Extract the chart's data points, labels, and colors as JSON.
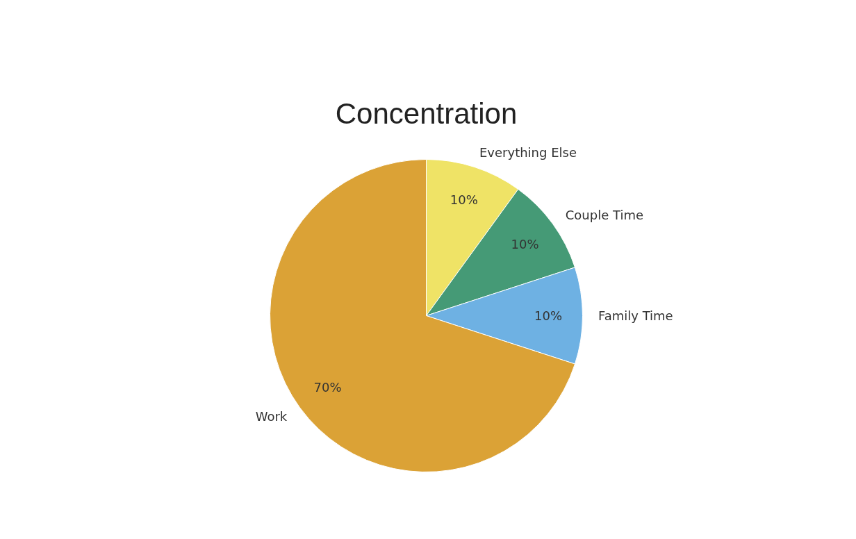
{
  "chart_data": {
    "type": "pie",
    "title": "Concentration",
    "categories": [
      "Everything Else",
      "Couple Time",
      "Family Time",
      "Work"
    ],
    "values": [
      10,
      10,
      10,
      70
    ],
    "colors": [
      "#efe366",
      "#459a76",
      "#6eb1e3",
      "#dba236"
    ],
    "value_labels": [
      "10%",
      "10%",
      "10%",
      "70%"
    ],
    "legend": false
  }
}
